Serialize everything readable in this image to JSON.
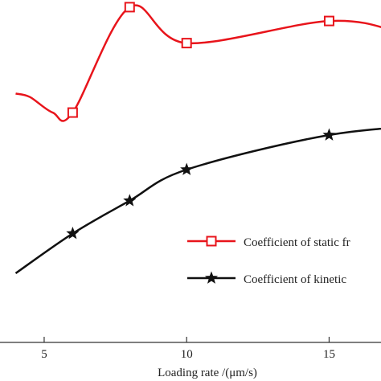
{
  "chart_data": {
    "type": "line",
    "xlabel": "Loading rate /(μm/s)",
    "ylabel": "",
    "title": "",
    "xlim": [
      4,
      19
    ],
    "ylim": [
      0,
      1
    ],
    "x_ticks": [
      5,
      10,
      15
    ],
    "x_tick_labels": [
      "5",
      "10",
      "15"
    ],
    "legend_position": "lower-right",
    "grid": false,
    "series": [
      {
        "name": "Coefficient of static fr",
        "color": "#e8141b",
        "marker": "square",
        "x": [
          6,
          8,
          10,
          15
        ],
        "y": [
          0.665,
          0.97,
          0.866,
          0.93
        ],
        "curve_x": [
          4,
          4.5,
          5.3,
          6,
          8,
          10,
          15,
          17.5,
          19
        ],
        "curve_y": [
          0.72,
          0.71,
          0.665,
          0.665,
          0.97,
          0.866,
          0.93,
          0.895,
          0.835
        ]
      },
      {
        "name": "Coefficient of kinetic",
        "color": "#111111",
        "marker": "star",
        "x": [
          6,
          8,
          10,
          15
        ],
        "y": [
          0.315,
          0.41,
          0.5,
          0.6
        ],
        "curve_x": [
          4,
          6,
          8,
          10,
          15,
          19
        ],
        "curve_y": [
          0.2,
          0.315,
          0.41,
          0.5,
          0.6,
          0.63
        ]
      }
    ]
  }
}
